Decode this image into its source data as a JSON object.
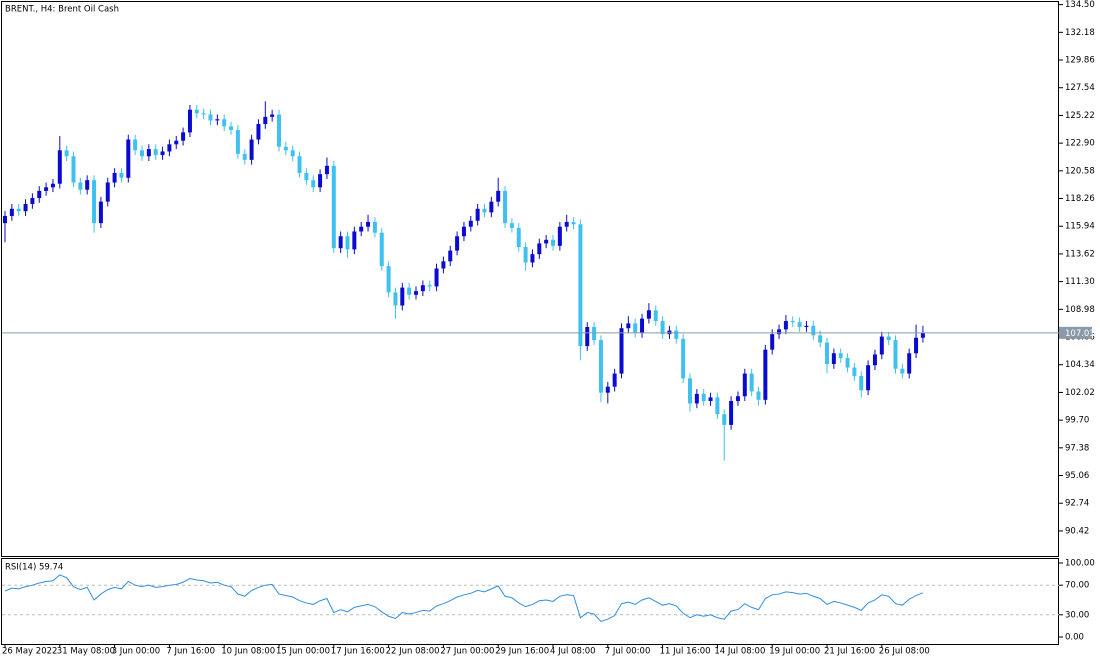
{
  "chart_data": [
    {
      "type": "candlestick",
      "title": "BRENT., H4:  Brent Oil Cash",
      "categories": [
        "26 May 2022",
        null,
        null,
        null,
        null,
        null,
        null,
        null,
        "31 May 08:00",
        null,
        null,
        null,
        null,
        null,
        null,
        null,
        "3 Jun 00:00",
        null,
        null,
        null,
        null,
        null,
        null,
        null,
        "7 Jun 16:00",
        null,
        null,
        null,
        null,
        null,
        null,
        null,
        "10 Jun 08:00",
        null,
        null,
        null,
        null,
        null,
        null,
        null,
        "15 Jun 00:00",
        null,
        null,
        null,
        null,
        null,
        null,
        null,
        "17 Jun 16:00",
        null,
        null,
        null,
        null,
        null,
        null,
        null,
        "22 Jun 08:00",
        null,
        null,
        null,
        null,
        null,
        null,
        null,
        "27 Jun 00:00",
        null,
        null,
        null,
        null,
        null,
        null,
        null,
        "29 Jun 16:00",
        null,
        null,
        null,
        null,
        null,
        null,
        null,
        "4 Jul 08:00",
        null,
        null,
        null,
        null,
        null,
        null,
        null,
        "7 Jul 00:00",
        null,
        null,
        null,
        null,
        null,
        null,
        null,
        "11 Jul 16:00",
        null,
        null,
        null,
        null,
        null,
        null,
        null,
        "14 Jul 08:00",
        null,
        null,
        null,
        null,
        null,
        null,
        null,
        "19 Jul 00:00",
        null,
        null,
        null,
        null,
        null,
        null,
        null,
        "21 Jul 16:00",
        null,
        null,
        null,
        null,
        null,
        null,
        null,
        "26 Jul 08:00",
        null,
        null,
        null,
        null,
        null,
        null
      ],
      "open": [
        116.2,
        116.8,
        117.4,
        117.2,
        117.8,
        118.3,
        118.9,
        119.2,
        119.5,
        122.3,
        121.8,
        119.6,
        119.0,
        119.8,
        116.2,
        118.0,
        119.6,
        120.4,
        120.0,
        123.2,
        122.3,
        121.8,
        122.4,
        121.9,
        122.2,
        122.8,
        123.1,
        123.8,
        125.7,
        125.4,
        125.3,
        124.8,
        124.9,
        124.3,
        124.0,
        122.0,
        121.5,
        123.2,
        124.5,
        125.1,
        125.3,
        122.6,
        122.3,
        121.8,
        120.4,
        119.8,
        119.2,
        120.3,
        121.0,
        114.1,
        115.1,
        114.0,
        115.5,
        115.9,
        116.3,
        115.4,
        112.6,
        110.4,
        109.3,
        110.8,
        110.2,
        110.5,
        111.0,
        110.9,
        112.4,
        113.0,
        113.9,
        115.1,
        115.9,
        116.4,
        117.4,
        117.1,
        118.0,
        118.9,
        116.2,
        115.8,
        114.2,
        112.9,
        113.6,
        114.5,
        114.8,
        114.3,
        115.9,
        116.3,
        116.1,
        105.9,
        107.5,
        106.4,
        102.0,
        102.5,
        103.6,
        107.4,
        107.8,
        107.0,
        108.2,
        108.9,
        108.0,
        106.9,
        107.2,
        106.5,
        103.2,
        101.1,
        101.9,
        101.3,
        101.6,
        100.2,
        99.3,
        101.3,
        101.7,
        103.6,
        102.1,
        101.4,
        105.6,
        106.9,
        107.3,
        108.0,
        107.9,
        107.5,
        107.6,
        106.8,
        106.2,
        104.4,
        105.3,
        104.9,
        104.1,
        103.4,
        102.2,
        104.3,
        105.2,
        106.7,
        106.4,
        104.0,
        103.6,
        105.3,
        106.6
      ],
      "high": [
        117.2,
        117.8,
        117.8,
        118.2,
        118.7,
        119.3,
        119.6,
        119.9,
        123.5,
        122.7,
        122.2,
        120.0,
        120.2,
        120.2,
        118.4,
        120.0,
        120.8,
        120.8,
        123.6,
        123.6,
        122.7,
        122.8,
        122.8,
        122.6,
        123.2,
        123.5,
        124.2,
        126.1,
        126.1,
        125.8,
        125.7,
        125.3,
        125.3,
        124.7,
        124.4,
        122.4,
        123.6,
        124.9,
        126.4,
        125.7,
        125.7,
        123.0,
        122.7,
        122.2,
        120.8,
        120.2,
        120.7,
        121.7,
        121.4,
        115.5,
        115.5,
        115.9,
        116.3,
        116.9,
        116.7,
        115.8,
        113.0,
        110.8,
        111.2,
        111.2,
        110.9,
        111.4,
        111.4,
        112.8,
        113.4,
        114.3,
        115.5,
        116.3,
        116.8,
        117.8,
        117.8,
        118.4,
        120.0,
        119.3,
        116.6,
        116.2,
        114.6,
        114.0,
        114.9,
        115.2,
        115.2,
        116.3,
        116.9,
        116.7,
        116.5,
        107.9,
        107.9,
        106.8,
        102.9,
        104.0,
        107.8,
        108.4,
        108.2,
        108.6,
        109.5,
        109.3,
        108.4,
        107.6,
        107.6,
        106.9,
        103.6,
        102.3,
        102.3,
        102.0,
        102.0,
        100.6,
        101.7,
        102.1,
        104.0,
        104.0,
        102.5,
        106.0,
        107.3,
        107.7,
        108.5,
        108.4,
        108.3,
        108.0,
        108.0,
        107.2,
        106.6,
        105.7,
        105.7,
        105.3,
        104.5,
        103.8,
        104.7,
        105.6,
        107.1,
        107.1,
        106.8,
        104.4,
        105.7,
        107.7,
        107.6
      ],
      "low": [
        114.6,
        116.4,
        116.8,
        116.8,
        117.4,
        117.9,
        118.5,
        118.8,
        119.1,
        121.4,
        119.2,
        118.6,
        118.6,
        115.4,
        115.8,
        117.6,
        119.2,
        119.6,
        119.6,
        121.9,
        121.4,
        121.4,
        121.5,
        121.5,
        121.8,
        122.4,
        122.7,
        123.4,
        125.0,
        124.9,
        124.4,
        124.4,
        123.9,
        123.6,
        121.6,
        121.1,
        121.1,
        122.8,
        124.1,
        124.7,
        122.2,
        121.9,
        121.4,
        120.0,
        119.4,
        118.8,
        118.8,
        119.9,
        113.7,
        113.7,
        113.3,
        113.6,
        115.1,
        115.5,
        115.0,
        112.2,
        110.0,
        108.2,
        108.9,
        109.8,
        109.8,
        110.1,
        110.5,
        110.5,
        112.0,
        112.6,
        113.5,
        114.7,
        115.5,
        116.0,
        116.7,
        116.7,
        117.6,
        115.8,
        115.4,
        113.8,
        112.2,
        112.5,
        113.2,
        114.1,
        113.9,
        113.9,
        115.5,
        115.7,
        104.7,
        105.5,
        106.0,
        101.2,
        101.1,
        102.1,
        103.2,
        107.0,
        106.6,
        106.6,
        107.8,
        107.6,
        106.5,
        106.5,
        106.1,
        102.8,
        100.4,
        100.7,
        100.9,
        100.9,
        99.8,
        96.3,
        98.9,
        100.9,
        101.3,
        101.7,
        100.9,
        101.0,
        105.2,
        106.5,
        106.9,
        107.5,
        107.1,
        107.1,
        106.4,
        105.8,
        103.6,
        104.0,
        104.5,
        103.7,
        103.0,
        101.6,
        101.8,
        103.9,
        104.8,
        106.0,
        103.6,
        103.2,
        103.2,
        104.9,
        106.2
      ],
      "close": [
        116.8,
        117.4,
        117.2,
        117.8,
        118.3,
        118.9,
        119.2,
        119.5,
        122.3,
        121.8,
        119.6,
        119.0,
        119.8,
        116.2,
        118.0,
        119.6,
        120.4,
        120.0,
        123.2,
        122.3,
        121.8,
        122.4,
        121.9,
        122.2,
        122.8,
        123.1,
        123.8,
        125.7,
        125.4,
        125.3,
        124.8,
        124.9,
        124.3,
        124.0,
        122.0,
        121.5,
        123.2,
        124.5,
        125.1,
        125.3,
        122.6,
        122.3,
        121.8,
        120.4,
        119.8,
        119.2,
        120.3,
        121.0,
        114.1,
        115.1,
        114.0,
        115.5,
        115.9,
        116.3,
        115.4,
        112.6,
        110.4,
        109.3,
        110.8,
        110.2,
        110.5,
        111.0,
        110.9,
        112.4,
        113.0,
        113.9,
        115.1,
        115.9,
        116.4,
        117.4,
        117.1,
        118.0,
        118.9,
        116.2,
        115.8,
        114.2,
        112.9,
        113.6,
        114.5,
        114.8,
        114.3,
        115.9,
        116.3,
        116.1,
        105.9,
        107.5,
        106.4,
        102.0,
        102.5,
        103.6,
        107.4,
        107.8,
        107.0,
        108.2,
        108.9,
        108.0,
        106.9,
        107.2,
        106.5,
        103.2,
        101.1,
        101.9,
        101.3,
        101.6,
        100.2,
        99.3,
        101.3,
        101.7,
        103.6,
        102.1,
        101.4,
        105.6,
        106.9,
        107.3,
        108.0,
        107.9,
        107.5,
        107.6,
        106.8,
        106.2,
        104.4,
        105.3,
        104.9,
        104.1,
        103.4,
        102.2,
        104.3,
        105.2,
        106.7,
        106.4,
        104.0,
        103.6,
        105.3,
        106.6,
        107.01
      ],
      "up_color": "#0a0ad0",
      "down_color": "#3ec1ef",
      "ylim": [
        88.32,
        134.72
      ],
      "yticks": [
        {
          "value": 134.5,
          "label": "134.50"
        },
        132.18,
        129.86,
        127.54,
        125.22,
        {
          "value": 122.9,
          "label": "122.90"
        },
        120.58,
        118.26,
        115.94,
        113.62,
        {
          "value": 111.3,
          "label": "111.30"
        },
        108.98,
        106.66,
        104.34,
        102.02,
        {
          "value": 99.7,
          "label": "99.70"
        },
        97.38,
        95.06,
        92.74,
        90.42
      ],
      "last_price": 107.01,
      "last_price_color": "#8a9aa8"
    },
    {
      "type": "line",
      "title": "RSI(14) 59.74",
      "values": [
        62,
        66,
        65,
        68,
        70,
        73,
        75,
        76,
        84,
        80,
        68,
        64,
        67,
        50,
        58,
        64,
        67,
        65,
        75,
        70,
        68,
        70,
        67,
        68,
        70,
        71,
        74,
        79,
        77,
        76,
        73,
        74,
        70,
        68,
        58,
        55,
        63,
        67,
        70,
        71,
        58,
        56,
        54,
        49,
        46,
        44,
        49,
        52,
        33,
        37,
        34,
        40,
        42,
        44,
        41,
        34,
        28,
        25,
        33,
        31,
        33,
        36,
        35,
        42,
        45,
        49,
        54,
        57,
        59,
        63,
        61,
        65,
        69,
        55,
        53,
        46,
        41,
        44,
        49,
        50,
        48,
        55,
        57,
        56,
        26,
        33,
        31,
        21,
        24,
        29,
        45,
        47,
        44,
        50,
        53,
        48,
        43,
        45,
        42,
        32,
        26,
        30,
        28,
        30,
        26,
        24,
        35,
        37,
        45,
        40,
        37,
        52,
        57,
        58,
        61,
        60,
        58,
        59,
        55,
        52,
        44,
        48,
        46,
        43,
        40,
        36,
        46,
        50,
        57,
        55,
        45,
        43,
        51,
        56,
        59.74
      ],
      "color": "#2f8fe0",
      "ylim": [
        -9.5,
        105.4
      ],
      "yticks": [
        {
          "value": 100,
          "label": "100.00"
        },
        {
          "value": 70,
          "label": "70.00"
        },
        {
          "value": 30,
          "label": "30.00"
        },
        {
          "value": 0,
          "label": "0.00"
        }
      ],
      "dashed_levels": [
        70,
        30
      ]
    }
  ]
}
